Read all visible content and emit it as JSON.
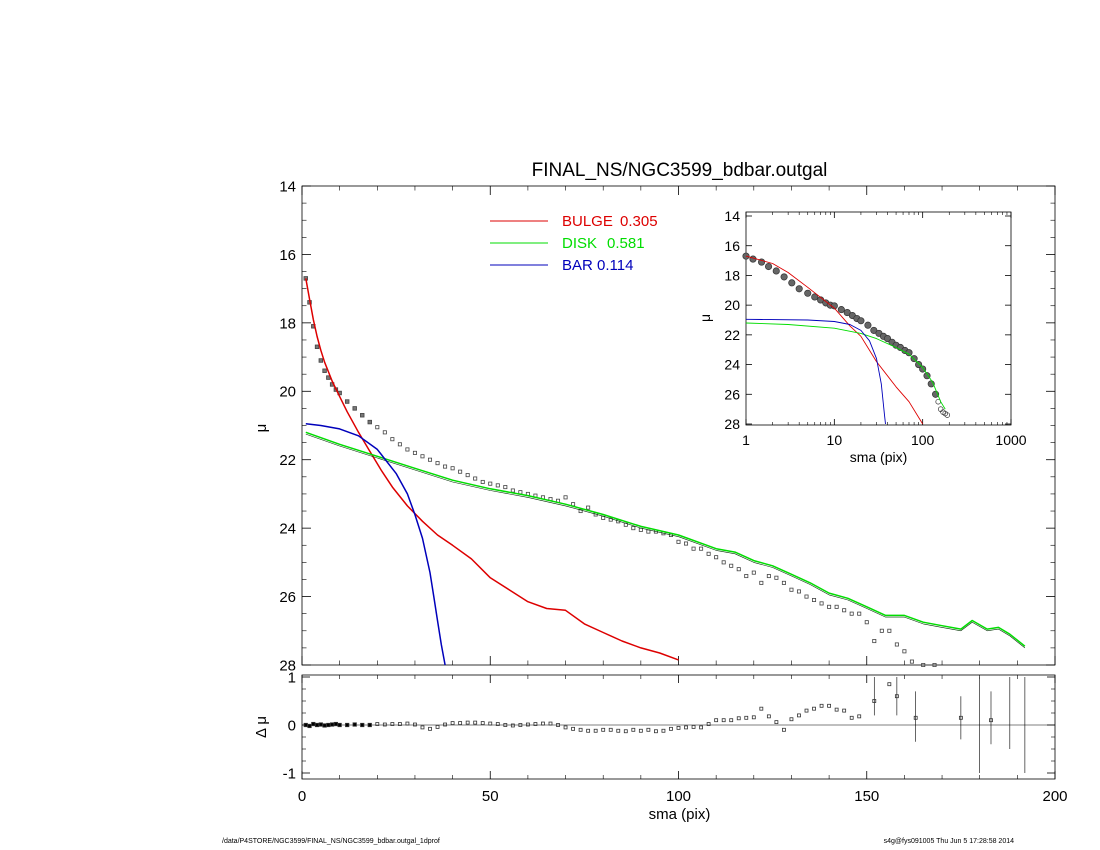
{
  "chart_data": [
    {
      "id": "main",
      "type": "line",
      "title": "FINAL_NS/NGC3599_bdbar.outgal",
      "xlabel": "sma (pix)",
      "ylabel": "μ",
      "xlim": [
        0,
        200
      ],
      "ylim": [
        28,
        14
      ],
      "xticks": [
        0,
        50,
        100,
        150,
        200
      ],
      "yticks": [
        14,
        16,
        18,
        20,
        22,
        24,
        26,
        28
      ],
      "legend": {
        "position": "top-center",
        "entries": [
          {
            "component": "BULGE",
            "value": "0.305",
            "color": "#dd0000"
          },
          {
            "component": "DISK",
            "value": "0.581",
            "color": "#00dd00"
          },
          {
            "component": "BAR",
            "value": "0.114",
            "color": "#0000bb"
          }
        ]
      },
      "series": [
        {
          "name": "BULGE",
          "color": "#dd0000",
          "x": [
            1,
            2,
            3,
            4,
            5,
            6,
            8,
            10,
            12,
            15,
            18,
            21,
            24,
            28,
            32,
            36,
            40,
            45,
            50,
            55,
            60,
            65,
            70,
            75,
            80,
            85,
            90,
            95,
            100
          ],
          "y": [
            16.7,
            17.3,
            17.9,
            18.4,
            18.8,
            19.15,
            19.7,
            20.15,
            20.6,
            21.2,
            21.75,
            22.3,
            22.8,
            23.35,
            23.8,
            24.2,
            24.5,
            24.9,
            25.45,
            25.8,
            26.15,
            26.35,
            26.4,
            26.8,
            27.05,
            27.3,
            27.5,
            27.65,
            27.85
          ]
        },
        {
          "name": "DISK",
          "color": "#00dd00",
          "x": [
            1,
            10,
            20,
            30,
            40,
            50,
            60,
            70,
            80,
            90,
            100,
            110,
            115,
            120,
            125,
            130,
            135,
            140,
            145,
            150,
            155,
            160,
            165,
            170,
            175,
            178,
            182,
            185,
            188,
            192
          ],
          "y": [
            21.2,
            21.55,
            21.9,
            22.25,
            22.6,
            22.85,
            23.05,
            23.3,
            23.6,
            23.95,
            24.2,
            24.6,
            24.7,
            24.95,
            25.1,
            25.35,
            25.6,
            25.9,
            26.05,
            26.3,
            26.55,
            26.55,
            26.75,
            26.85,
            26.95,
            26.7,
            26.95,
            26.9,
            27.1,
            27.45
          ]
        },
        {
          "name": "BAR",
          "color": "#0000bb",
          "x": [
            1,
            5,
            10,
            15,
            20,
            25,
            28,
            30,
            32,
            34,
            35,
            36,
            37,
            38
          ],
          "y": [
            20.95,
            21.0,
            21.1,
            21.3,
            21.7,
            22.4,
            23.0,
            23.6,
            24.3,
            25.3,
            26.0,
            26.7,
            27.4,
            28.0
          ]
        }
      ],
      "data_points": {
        "symbol": "square",
        "x": [
          1,
          2,
          3,
          4,
          5,
          6,
          7,
          8,
          9,
          10,
          12,
          14,
          16,
          18,
          20,
          22,
          24,
          26,
          28,
          30,
          32,
          34,
          36,
          38,
          40,
          42,
          44,
          46,
          48,
          50,
          52,
          54,
          56,
          58,
          60,
          62,
          64,
          66,
          68,
          70,
          72,
          74,
          76,
          78,
          80,
          82,
          84,
          86,
          88,
          90,
          92,
          94,
          96,
          98,
          100,
          102,
          104,
          106,
          108,
          110,
          112,
          114,
          116,
          118,
          120,
          122,
          124,
          126,
          128,
          130,
          132,
          134,
          136,
          138,
          140,
          142,
          144,
          146,
          148,
          150,
          152,
          154,
          156,
          158,
          160,
          162,
          165,
          168
        ],
        "y": [
          16.7,
          17.4,
          18.1,
          18.7,
          19.1,
          19.4,
          19.6,
          19.8,
          19.95,
          20.05,
          20.3,
          20.5,
          20.7,
          20.9,
          21.05,
          21.2,
          21.4,
          21.55,
          21.7,
          21.8,
          21.9,
          22.0,
          22.1,
          22.2,
          22.25,
          22.35,
          22.45,
          22.55,
          22.65,
          22.7,
          22.75,
          22.8,
          22.9,
          22.95,
          23.0,
          23.05,
          23.1,
          23.15,
          23.2,
          23.1,
          23.3,
          23.5,
          23.4,
          23.6,
          23.7,
          23.75,
          23.8,
          23.9,
          24.0,
          24.05,
          24.1,
          24.1,
          24.15,
          24.2,
          24.4,
          24.45,
          24.6,
          24.6,
          24.75,
          24.85,
          25.0,
          25.1,
          25.2,
          25.4,
          25.3,
          25.6,
          25.4,
          25.45,
          25.6,
          25.8,
          25.85,
          26.0,
          26.1,
          26.2,
          26.3,
          26.3,
          26.4,
          26.5,
          26.5,
          26.75,
          27.3,
          27.0,
          27.0,
          27.4,
          27.6,
          27.9,
          28.0,
          28.0
        ]
      }
    },
    {
      "id": "residual",
      "type": "scatter",
      "xlabel": "sma (pix)",
      "ylabel": "Δ μ",
      "xlim": [
        0,
        200
      ],
      "ylim": [
        -1,
        1
      ],
      "xticks": [
        0,
        50,
        100,
        150,
        200
      ],
      "yticks": [
        -1,
        0,
        1
      ],
      "points": {
        "x": [
          1,
          2,
          3,
          4,
          5,
          6,
          7,
          8,
          9,
          10,
          12,
          14,
          16,
          18,
          20,
          22,
          24,
          26,
          28,
          30,
          32,
          34,
          36,
          38,
          40,
          42,
          44,
          46,
          48,
          50,
          52,
          54,
          56,
          58,
          60,
          62,
          64,
          66,
          68,
          70,
          72,
          74,
          76,
          78,
          80,
          82,
          84,
          86,
          88,
          90,
          92,
          94,
          96,
          98,
          100,
          102,
          104,
          106,
          108,
          110,
          112,
          114,
          116,
          118,
          120,
          122,
          124,
          126,
          128,
          130,
          132,
          134,
          136,
          138,
          140,
          142,
          144,
          146,
          148,
          152,
          156,
          158,
          163,
          175,
          183
        ],
        "y": [
          0.0,
          -0.02,
          0.02,
          0.0,
          0.01,
          -0.01,
          0.0,
          0.01,
          0.02,
          0.0,
          0.0,
          0.01,
          0.0,
          0.0,
          0.02,
          0.01,
          0.02,
          0.02,
          0.03,
          0.01,
          -0.05,
          -0.08,
          -0.04,
          0.01,
          0.04,
          0.04,
          0.05,
          0.05,
          0.04,
          0.03,
          0.02,
          0.0,
          -0.01,
          0.0,
          0.01,
          0.02,
          0.03,
          0.03,
          0.0,
          -0.05,
          -0.08,
          -0.1,
          -0.12,
          -0.12,
          -0.1,
          -0.1,
          -0.12,
          -0.13,
          -0.1,
          -0.12,
          -0.1,
          -0.13,
          -0.12,
          -0.08,
          -0.06,
          -0.05,
          -0.04,
          -0.05,
          0.02,
          0.1,
          0.1,
          0.1,
          0.14,
          0.15,
          0.16,
          0.34,
          0.18,
          0.06,
          -0.1,
          0.12,
          0.2,
          0.3,
          0.34,
          0.4,
          0.4,
          0.32,
          0.3,
          0.15,
          0.18,
          0.5,
          0.85,
          0.6,
          0.15,
          0.15,
          0.1
        ],
        "error_bars": [
          {
            "x": 152,
            "lo": 0.2,
            "hi": 1.0
          },
          {
            "x": 158,
            "lo": 0.2,
            "hi": 1.0
          },
          {
            "x": 163,
            "lo": -0.35,
            "hi": 0.7
          },
          {
            "x": 175,
            "lo": -0.3,
            "hi": 0.6
          },
          {
            "x": 180,
            "lo": -1.0,
            "hi": 1.0
          },
          {
            "x": 183,
            "lo": -0.4,
            "hi": 0.7
          },
          {
            "x": 188,
            "lo": -0.5,
            "hi": 1.0
          },
          {
            "x": 192,
            "lo": -1.0,
            "hi": 1.0
          }
        ]
      }
    },
    {
      "id": "inset",
      "type": "line",
      "xlabel": "sma (pix)",
      "ylabel": "μ",
      "xscale": "log",
      "xlim": [
        1,
        1000
      ],
      "ylim": [
        28,
        14
      ],
      "xticks": [
        1,
        10,
        100,
        1000
      ],
      "yticks": [
        14,
        16,
        18,
        20,
        22,
        24,
        26,
        28
      ],
      "series": [
        {
          "name": "BULGE",
          "color": "#dd0000",
          "x": [
            1,
            2,
            3,
            5,
            10,
            15,
            20,
            30,
            50,
            70,
            100
          ],
          "y": [
            16.7,
            17.2,
            17.8,
            18.8,
            20.2,
            21.4,
            22.1,
            23.8,
            25.5,
            26.5,
            28.0
          ]
        },
        {
          "name": "DISK",
          "color": "#00dd00",
          "x": [
            1,
            3,
            10,
            20,
            30,
            50,
            70,
            100,
            130,
            160,
            180
          ],
          "y": [
            21.2,
            21.3,
            21.55,
            21.9,
            22.25,
            22.85,
            23.3,
            24.2,
            25.2,
            26.5,
            27.0
          ]
        },
        {
          "name": "BAR",
          "color": "#0000bb",
          "x": [
            1,
            5,
            10,
            15,
            20,
            25,
            30,
            34,
            37,
            38
          ],
          "y": [
            20.95,
            21.0,
            21.1,
            21.3,
            21.7,
            22.4,
            23.6,
            25.3,
            27.4,
            28.0
          ]
        }
      ],
      "data_points": {
        "x": [
          1,
          1.2,
          1.5,
          1.8,
          2.2,
          2.7,
          3.3,
          4,
          5,
          6,
          7,
          8,
          9,
          10,
          12,
          14,
          16,
          18,
          20,
          24,
          28,
          32,
          36,
          40,
          45,
          50,
          56,
          63,
          70,
          80,
          90,
          100,
          112,
          125,
          140,
          150,
          160,
          170,
          180,
          190
        ],
        "y": [
          16.7,
          16.9,
          17.1,
          17.4,
          17.7,
          18.1,
          18.5,
          18.9,
          19.2,
          19.45,
          19.65,
          19.85,
          20.0,
          20.05,
          20.3,
          20.5,
          20.7,
          20.9,
          21.05,
          21.35,
          21.7,
          21.9,
          22.1,
          22.25,
          22.5,
          22.7,
          22.85,
          23.05,
          23.2,
          23.6,
          24.0,
          24.3,
          24.75,
          25.3,
          26.0,
          26.5,
          27.0,
          27.2,
          27.3,
          27.4
        ]
      }
    }
  ],
  "footer": {
    "path": "/data/P4STORE/NGC3599/FINAL_NS/NGC3599_bdbar.outgal_1dprof",
    "stamp": "s4g@fys091005  Thu Jun  5 17:28:58 2014"
  }
}
